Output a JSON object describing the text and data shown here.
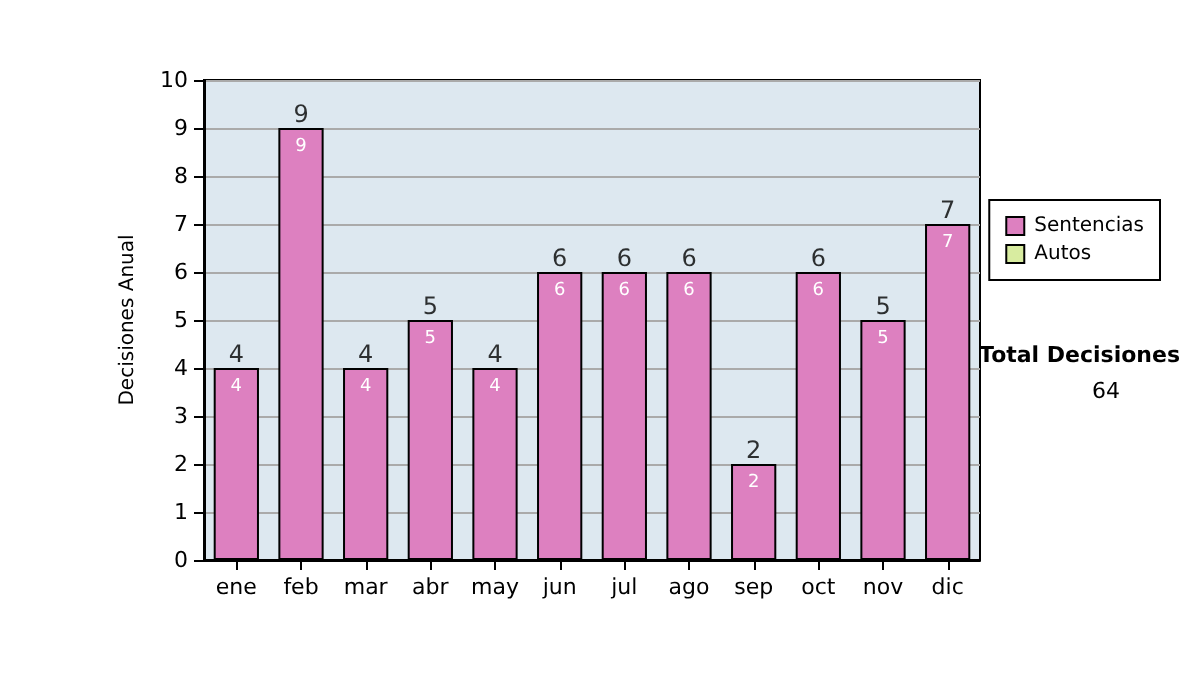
{
  "chart_data": {
    "type": "bar",
    "ylabel": "Decisiones Anual",
    "categories": [
      "ene",
      "feb",
      "mar",
      "abr",
      "may",
      "jun",
      "jul",
      "ago",
      "sep",
      "oct",
      "nov",
      "dic"
    ],
    "series": [
      {
        "name": "Sentencias",
        "color": "#dd80c0",
        "values": [
          4,
          9,
          4,
          5,
          4,
          6,
          6,
          6,
          2,
          6,
          5,
          7
        ]
      },
      {
        "name": "Autos",
        "color": "#d8eca0",
        "values": [
          null,
          null,
          null,
          null,
          null,
          null,
          null,
          null,
          null,
          null,
          null,
          null
        ]
      }
    ],
    "stacked": true,
    "data_labels": true,
    "totals": [
      "4",
      "9",
      "4",
      "5",
      "4",
      "6",
      "6",
      "6",
      "2",
      "6",
      "5",
      "7"
    ],
    "ylim": [
      0,
      10
    ],
    "yticks": [
      0,
      1,
      2,
      3,
      4,
      5,
      6,
      7,
      8,
      9,
      10
    ],
    "grid": "y",
    "legend": "right",
    "annotations": [
      "Total Decisiones",
      "64"
    ]
  }
}
